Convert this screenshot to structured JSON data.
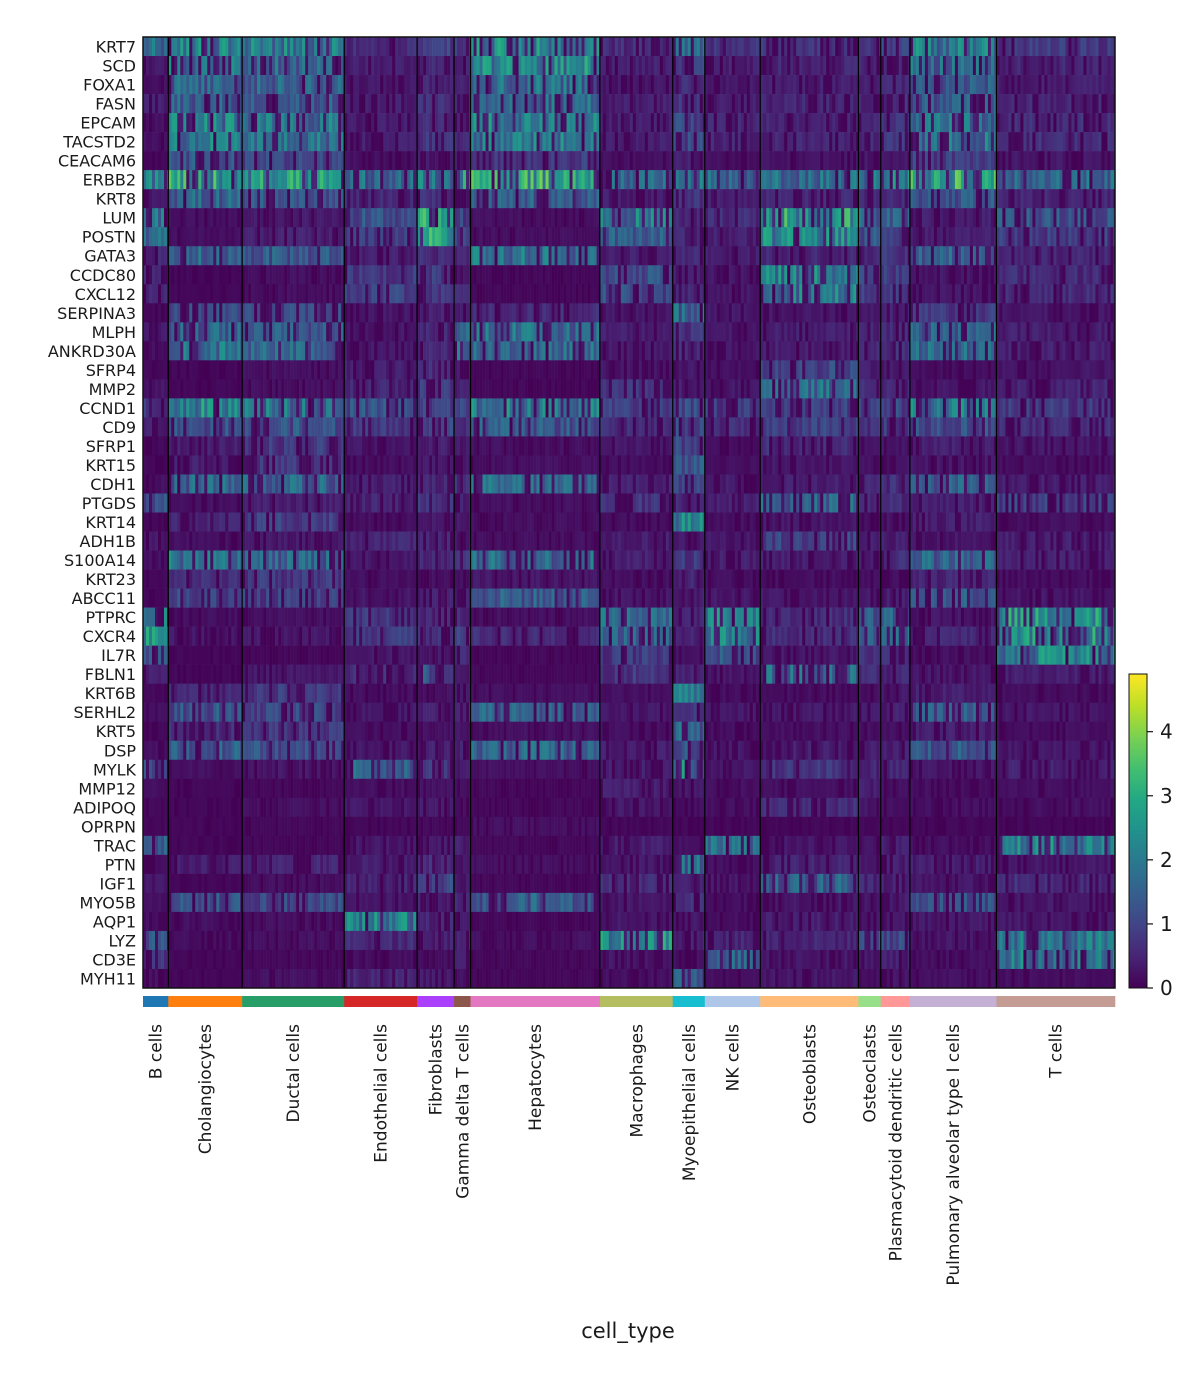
{
  "chart_data": {
    "type": "heatmap",
    "colormap": "viridis",
    "xlabel": "cell_type",
    "genes": [
      "KRT7",
      "SCD",
      "FOXA1",
      "FASN",
      "EPCAM",
      "TACSTD2",
      "CEACAM6",
      "ERBB2",
      "KRT8",
      "LUM",
      "POSTN",
      "GATA3",
      "CCDC80",
      "CXCL12",
      "SERPINA3",
      "MLPH",
      "ANKRD30A",
      "SFRP4",
      "MMP2",
      "CCND1",
      "CD9",
      "SFRP1",
      "KRT15",
      "CDH1",
      "PTGDS",
      "KRT14",
      "ADH1B",
      "S100A14",
      "KRT23",
      "ABCC11",
      "PTPRC",
      "CXCR4",
      "IL7R",
      "FBLN1",
      "KRT6B",
      "SERHL2",
      "KRT5",
      "DSP",
      "MYLK",
      "MMP12",
      "ADIPOQ",
      "OPRPN",
      "TRAC",
      "PTN",
      "IGF1",
      "MYO5B",
      "AQP1",
      "LYZ",
      "CD3E",
      "MYH11"
    ],
    "groups": [
      {
        "name": "B cells",
        "color": "#1f77b4",
        "share": 0.026
      },
      {
        "name": "Cholangiocytes",
        "color": "#ff7f0e",
        "share": 0.076
      },
      {
        "name": "Ductal cells",
        "color": "#279e68",
        "share": 0.105
      },
      {
        "name": "Endothelial cells",
        "color": "#d62728",
        "share": 0.075
      },
      {
        "name": "Fibroblasts",
        "color": "#aa40fc",
        "share": 0.038
      },
      {
        "name": "Gamma delta T cells",
        "color": "#8c564b",
        "share": 0.017
      },
      {
        "name": "Hepatocytes",
        "color": "#e377c2",
        "share": 0.133
      },
      {
        "name": "Macrophages",
        "color": "#b5bd61",
        "share": 0.075
      },
      {
        "name": "Myoepithelial cells",
        "color": "#17becf",
        "share": 0.033
      },
      {
        "name": "NK cells",
        "color": "#aec7e8",
        "share": 0.057
      },
      {
        "name": "Osteoblasts",
        "color": "#ffbb78",
        "share": 0.101
      },
      {
        "name": "Osteoclasts",
        "color": "#98df8a",
        "share": 0.023
      },
      {
        "name": "Plasmacytoid dendritic cells",
        "color": "#ff9896",
        "share": 0.03
      },
      {
        "name": "Pulmonary alveolar type I cells",
        "color": "#c5b0d5",
        "share": 0.089
      },
      {
        "name": "T cells",
        "color": "#c49c94",
        "share": 0.122
      }
    ],
    "mean_expression": {
      "B cells": [
        "1.6",
        "0.3",
        "0.2",
        "0.4",
        "0.2",
        "0.2",
        "0.1",
        "1.9",
        "0.3",
        "1.8",
        "1.6",
        "0.5",
        "0.6",
        "0.5",
        "0.1",
        "0.3",
        "0.2",
        "0.1",
        "0.3",
        "0.8",
        "0.4",
        "0.1",
        "0.1",
        "0.2",
        "1.2",
        "0.1",
        "0.3",
        "0.2",
        "0.1",
        "0.1",
        "1.8",
        "2.2",
        "1.6",
        "0.4",
        "0.1",
        "0.2",
        "0.1",
        "0.2",
        "1.0",
        "0.2",
        "0.1",
        "0.1",
        "1.3",
        "0.2",
        "0.3",
        "0.2",
        "0.2",
        "1.2",
        "0.7",
        "0.2"
      ],
      "Cholangiocytes": [
        "2.0",
        "1.8",
        "1.5",
        "1.5",
        "2.0",
        "2.0",
        "1.2",
        "2.6",
        "1.5",
        "0.2",
        "0.2",
        "1.5",
        "0.1",
        "0.1",
        "1.0",
        "1.5",
        "1.8",
        "0.1",
        "0.1",
        "2.2",
        "1.2",
        "0.4",
        "0.4",
        "1.5",
        "0.2",
        "0.6",
        "0.2",
        "1.8",
        "0.6",
        "1.0",
        "0.2",
        "0.3",
        "0.1",
        "0.1",
        "0.5",
        "1.2",
        "0.6",
        "1.4",
        "0.2",
        "0.1",
        "0.1",
        "0.1",
        "0.1",
        "0.4",
        "0.1",
        "1.2",
        "0.2",
        "0.2",
        "0.1",
        "0.1"
      ],
      "Ductal cells": [
        "2.0",
        "1.6",
        "1.5",
        "1.4",
        "1.8",
        "1.8",
        "1.0",
        "2.4",
        "1.3",
        "0.3",
        "0.4",
        "1.3",
        "0.2",
        "0.2",
        "1.0",
        "1.3",
        "1.5",
        "0.2",
        "0.2",
        "1.8",
        "1.2",
        "0.8",
        "0.8",
        "1.5",
        "0.4",
        "0.9",
        "0.3",
        "1.5",
        "0.8",
        "0.9",
        "0.2",
        "0.3",
        "0.1",
        "0.3",
        "0.8",
        "1.0",
        "0.8",
        "1.2",
        "0.3",
        "0.1",
        "0.2",
        "0.1",
        "0.1",
        "0.5",
        "0.2",
        "1.0",
        "0.2",
        "0.2",
        "0.1",
        "0.2"
      ],
      "Endothelial cells": [
        "0.6",
        "0.4",
        "0.3",
        "0.4",
        "0.4",
        "0.4",
        "0.2",
        "1.6",
        "0.5",
        "1.2",
        "0.8",
        "0.4",
        "0.8",
        "1.0",
        "0.3",
        "0.3",
        "0.3",
        "0.4",
        "0.5",
        "1.2",
        "0.8",
        "0.3",
        "0.2",
        "0.4",
        "0.5",
        "0.2",
        "0.5",
        "0.3",
        "0.2",
        "0.3",
        "0.8",
        "0.8",
        "0.3",
        "0.6",
        "0.2",
        "0.3",
        "0.2",
        "0.3",
        "1.5",
        "0.2",
        "0.3",
        "0.1",
        "0.3",
        "0.4",
        "0.5",
        "0.3",
        "2.0",
        "0.6",
        "0.2",
        "0.5"
      ],
      "Fibroblasts": [
        "0.9",
        "0.6",
        "0.5",
        "0.6",
        "0.7",
        "0.7",
        "0.3",
        "1.8",
        "0.6",
        "3.0",
        "3.4",
        "0.6",
        "0.9",
        "0.8",
        "0.4",
        "0.5",
        "0.5",
        "0.6",
        "0.8",
        "0.9",
        "0.9",
        "0.4",
        "0.3",
        "0.5",
        "0.7",
        "0.3",
        "0.5",
        "0.5",
        "0.2",
        "0.4",
        "0.5",
        "0.6",
        "0.3",
        "1.2",
        "0.2",
        "0.4",
        "0.2",
        "0.4",
        "0.7",
        "0.2",
        "0.3",
        "0.1",
        "0.3",
        "0.6",
        "1.0",
        "0.4",
        "0.5",
        "0.4",
        "0.2",
        "0.3"
      ],
      "Gamma delta T cells": [
        "0.8",
        "0.5",
        "0.4",
        "0.5",
        "0.5",
        "0.5",
        "0.3",
        "2.8",
        "0.4",
        "0.9",
        "1.0",
        "0.6",
        "0.5",
        "0.5",
        "0.3",
        "1.4",
        "1.8",
        "0.3",
        "0.4",
        "0.9",
        "0.6",
        "0.3",
        "0.3",
        "0.6",
        "0.4",
        "0.3",
        "0.3",
        "1.0",
        "0.2",
        "0.4",
        "0.6",
        "0.9",
        "0.5",
        "0.3",
        "0.3",
        "0.6",
        "0.3",
        "0.5",
        "0.4",
        "0.2",
        "0.2",
        "0.1",
        "0.4",
        "0.3",
        "0.3",
        "0.5",
        "0.3",
        "0.4",
        "0.4",
        "0.2"
      ],
      "Hepatocytes": [
        "2.1",
        "2.2",
        "1.7",
        "1.7",
        "2.0",
        "1.9",
        "0.8",
        "2.7",
        "1.4",
        "0.2",
        "0.2",
        "1.8",
        "0.1",
        "0.1",
        "0.6",
        "1.7",
        "1.6",
        "0.1",
        "0.1",
        "2.0",
        "1.3",
        "0.2",
        "0.2",
        "1.6",
        "0.2",
        "0.2",
        "0.2",
        "1.6",
        "0.3",
        "1.4",
        "0.2",
        "0.6",
        "0.1",
        "0.1",
        "0.2",
        "1.4",
        "0.2",
        "1.5",
        "0.2",
        "0.1",
        "0.1",
        "0.2",
        "0.1",
        "0.2",
        "0.1",
        "1.4",
        "0.1",
        "0.2",
        "0.1",
        "0.1"
      ],
      "Macrophages": [
        "0.6",
        "0.4",
        "0.3",
        "0.4",
        "0.4",
        "0.4",
        "0.2",
        "1.6",
        "0.4",
        "1.9",
        "1.4",
        "0.4",
        "1.2",
        "1.1",
        "0.3",
        "0.4",
        "0.4",
        "0.3",
        "0.7",
        "0.9",
        "0.6",
        "0.3",
        "0.2",
        "0.5",
        "0.7",
        "0.2",
        "0.4",
        "0.4",
        "0.2",
        "0.3",
        "1.6",
        "1.4",
        "0.8",
        "0.8",
        "0.2",
        "0.3",
        "0.2",
        "0.4",
        "0.4",
        "0.4",
        "0.3",
        "0.1",
        "0.4",
        "0.3",
        "0.6",
        "0.3",
        "0.3",
        "2.3",
        "0.3",
        "0.2"
      ],
      "Myoepithelial cells": [
        "1.6",
        "0.9",
        "0.6",
        "0.7",
        "1.0",
        "1.0",
        "0.4",
        "1.8",
        "0.7",
        "0.6",
        "0.5",
        "0.6",
        "0.4",
        "0.5",
        "1.6",
        "0.7",
        "0.6",
        "0.3",
        "0.4",
        "1.2",
        "1.0",
        "1.0",
        "1.2",
        "0.9",
        "0.5",
        "2.0",
        "0.3",
        "0.8",
        "0.5",
        "0.4",
        "0.5",
        "0.5",
        "0.3",
        "0.5",
        "1.8",
        "0.7",
        "1.5",
        "1.2",
        "2.0",
        "0.3",
        "0.2",
        "0.1",
        "0.2",
        "1.6",
        "0.4",
        "0.6",
        "0.3",
        "0.4",
        "0.2",
        "1.6"
      ],
      "NK cells": [
        "0.7",
        "0.4",
        "0.3",
        "0.4",
        "0.5",
        "0.5",
        "0.2",
        "1.6",
        "0.4",
        "0.6",
        "0.4",
        "0.4",
        "0.3",
        "0.3",
        "0.3",
        "0.3",
        "0.3",
        "0.2",
        "0.3",
        "0.8",
        "0.6",
        "0.2",
        "0.2",
        "0.4",
        "0.4",
        "0.2",
        "0.3",
        "0.4",
        "0.2",
        "0.3",
        "2.0",
        "2.0",
        "1.2",
        "0.3",
        "0.2",
        "0.3",
        "0.2",
        "0.3",
        "0.3",
        "0.2",
        "0.2",
        "0.1",
        "1.6",
        "0.2",
        "0.3",
        "0.2",
        "0.2",
        "0.5",
        "1.4",
        "0.2"
      ],
      "Osteoblasts": [
        "0.7",
        "0.5",
        "0.4",
        "0.5",
        "0.5",
        "0.5",
        "0.3",
        "1.7",
        "0.5",
        "2.5",
        "2.2",
        "0.5",
        "2.0",
        "2.0",
        "0.3",
        "0.4",
        "0.4",
        "1.0",
        "1.6",
        "0.9",
        "0.9",
        "0.6",
        "0.3",
        "0.4",
        "1.5",
        "0.3",
        "1.0",
        "0.4",
        "0.2",
        "0.3",
        "0.6",
        "0.6",
        "0.3",
        "1.6",
        "0.2",
        "0.3",
        "0.2",
        "0.4",
        "0.7",
        "0.2",
        "0.6",
        "0.1",
        "0.3",
        "0.5",
        "1.4",
        "0.3",
        "0.4",
        "0.5",
        "0.3",
        "0.3"
      ],
      "Osteoclasts": [
        "0.8",
        "0.5",
        "0.4",
        "0.5",
        "0.6",
        "0.6",
        "0.3",
        "1.8",
        "0.5",
        "1.6",
        "1.2",
        "0.5",
        "1.0",
        "0.9",
        "0.3",
        "0.5",
        "0.5",
        "0.4",
        "0.6",
        "0.9",
        "0.7",
        "0.3",
        "0.2",
        "0.5",
        "0.6",
        "0.2",
        "0.4",
        "0.4",
        "0.2",
        "0.3",
        "1.4",
        "1.2",
        "0.6",
        "0.6",
        "0.2",
        "0.3",
        "0.2",
        "0.4",
        "0.5",
        "0.4",
        "0.3",
        "0.1",
        "0.3",
        "0.3",
        "0.5",
        "0.3",
        "0.3",
        "1.6",
        "0.3",
        "0.2"
      ],
      "Plasmacytoid dendritic cells": [
        "0.9",
        "0.6",
        "0.5",
        "0.6",
        "0.7",
        "0.7",
        "0.3",
        "2.0",
        "0.5",
        "1.4",
        "1.1",
        "0.7",
        "0.8",
        "0.8",
        "0.4",
        "0.6",
        "0.6",
        "0.3",
        "0.5",
        "1.0",
        "0.8",
        "0.3",
        "0.3",
        "0.6",
        "0.6",
        "0.3",
        "0.4",
        "0.6",
        "0.2",
        "0.4",
        "1.5",
        "1.8",
        "0.6",
        "0.5",
        "0.3",
        "0.4",
        "0.2",
        "0.4",
        "0.5",
        "0.2",
        "0.2",
        "0.1",
        "0.4",
        "0.4",
        "0.4",
        "0.4",
        "0.3",
        "1.0",
        "0.4",
        "0.3"
      ],
      "Pulmonary alveolar type I cells": [
        "2.0",
        "1.6",
        "1.3",
        "1.4",
        "1.8",
        "1.8",
        "0.9",
        "2.7",
        "1.3",
        "0.4",
        "0.4",
        "1.6",
        "0.3",
        "0.3",
        "0.8",
        "1.5",
        "1.6",
        "0.2",
        "0.3",
        "2.0",
        "1.2",
        "0.4",
        "0.3",
        "1.4",
        "0.4",
        "0.4",
        "0.3",
        "1.5",
        "0.5",
        "1.3",
        "0.3",
        "0.5",
        "0.2",
        "0.3",
        "0.4",
        "1.3",
        "0.4",
        "1.3",
        "0.3",
        "0.2",
        "0.2",
        "0.1",
        "0.2",
        "0.4",
        "0.3",
        "1.2",
        "0.3",
        "0.3",
        "0.2",
        "0.2"
      ],
      "T cells": [
        "0.8",
        "0.5",
        "0.4",
        "0.5",
        "0.6",
        "0.6",
        "0.3",
        "1.6",
        "0.5",
        "1.2",
        "0.9",
        "0.5",
        "0.6",
        "0.6",
        "0.3",
        "0.4",
        "0.4",
        "0.3",
        "0.5",
        "0.8",
        "0.6",
        "0.3",
        "0.2",
        "0.4",
        "0.9",
        "0.2",
        "0.4",
        "0.4",
        "0.2",
        "0.3",
        "2.3",
        "2.3",
        "2.1",
        "0.4",
        "0.2",
        "0.3",
        "0.2",
        "0.3",
        "0.4",
        "0.2",
        "0.2",
        "0.1",
        "2.0",
        "0.3",
        "0.6",
        "0.3",
        "0.3",
        "1.8",
        "1.9",
        "0.2"
      ]
    },
    "colorbar": {
      "vmin": 0,
      "vmax": 4.9,
      "ticks": [
        "0",
        "1",
        "2",
        "3",
        "4"
      ]
    }
  }
}
